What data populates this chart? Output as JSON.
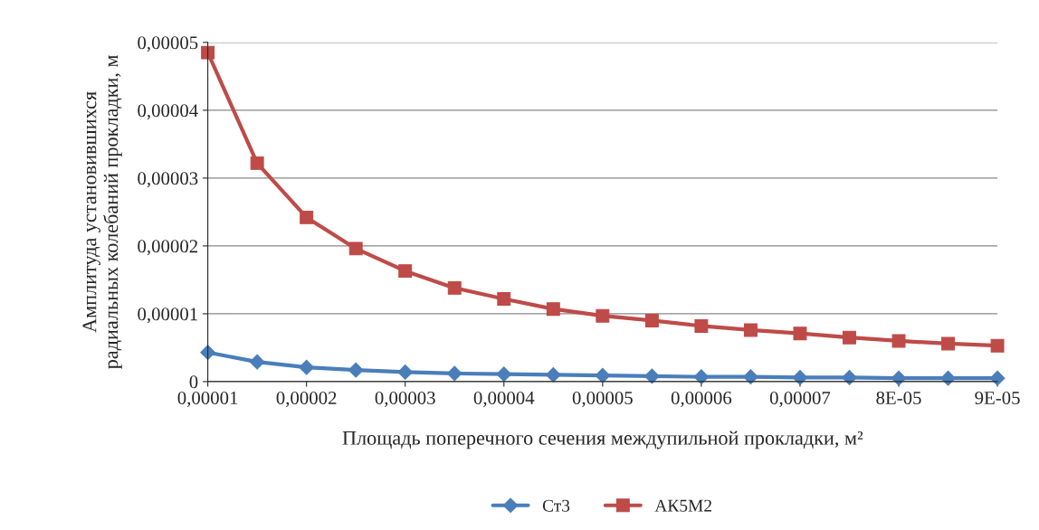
{
  "chart_data": {
    "type": "line",
    "xlabel": "Площадь поперечного сечения междупильной прокладки, м²",
    "ylabel": "Амплитуда установившихся\nрадиальных колебаний прокладки, м",
    "x": [
      1e-05,
      1.5e-05,
      2e-05,
      2.5e-05,
      3e-05,
      3.5e-05,
      4e-05,
      4.5e-05,
      5e-05,
      5.5e-05,
      6e-05,
      6.5e-05,
      7e-05,
      7.5e-05,
      8e-05,
      8.5e-05,
      9e-05
    ],
    "series": [
      {
        "name": "Ст3",
        "color": "#4a7ebb",
        "marker": "diamond",
        "values": [
          4.3e-06,
          2.9e-06,
          2.1e-06,
          1.7e-06,
          1.4e-06,
          1.2e-06,
          1.1e-06,
          1e-06,
          9e-07,
          8e-07,
          7e-07,
          7e-07,
          6e-07,
          6e-07,
          5e-07,
          5e-07,
          5e-07
        ]
      },
      {
        "name": "АК5М2",
        "color": "#be4b48",
        "marker": "square",
        "values": [
          4.85e-05,
          3.22e-05,
          2.42e-05,
          1.96e-05,
          1.63e-05,
          1.38e-05,
          1.22e-05,
          1.07e-05,
          9.7e-06,
          9e-06,
          8.2e-06,
          7.6e-06,
          7.1e-06,
          6.5e-06,
          6e-06,
          5.6e-06,
          5.3e-06
        ]
      }
    ],
    "xlim": [
      1e-05,
      9e-05
    ],
    "xticks": [
      {
        "value": 1e-05,
        "label": "0,00001"
      },
      {
        "value": 2e-05,
        "label": "0,00002"
      },
      {
        "value": 3e-05,
        "label": "0,00003"
      },
      {
        "value": 4e-05,
        "label": "0,00004"
      },
      {
        "value": 5e-05,
        "label": "0,00005"
      },
      {
        "value": 6e-05,
        "label": "0,00006"
      },
      {
        "value": 7e-05,
        "label": "0,00007"
      },
      {
        "value": 8e-05,
        "label": "8E-05"
      },
      {
        "value": 9e-05,
        "label": "9E-05"
      }
    ],
    "ylim": [
      0,
      5e-05
    ],
    "yticks": [
      0,
      {
        "value": 1e-05,
        "label": "0,00001"
      },
      {
        "value": 2e-05,
        "label": "0,00002"
      },
      {
        "value": 3e-05,
        "label": "0,00003"
      },
      {
        "value": 4e-05,
        "label": "0,00004"
      },
      {
        "value": 5e-05,
        "label": "0,00005"
      }
    ],
    "grid": "y",
    "legend": "bottom",
    "line_style": "solid"
  }
}
